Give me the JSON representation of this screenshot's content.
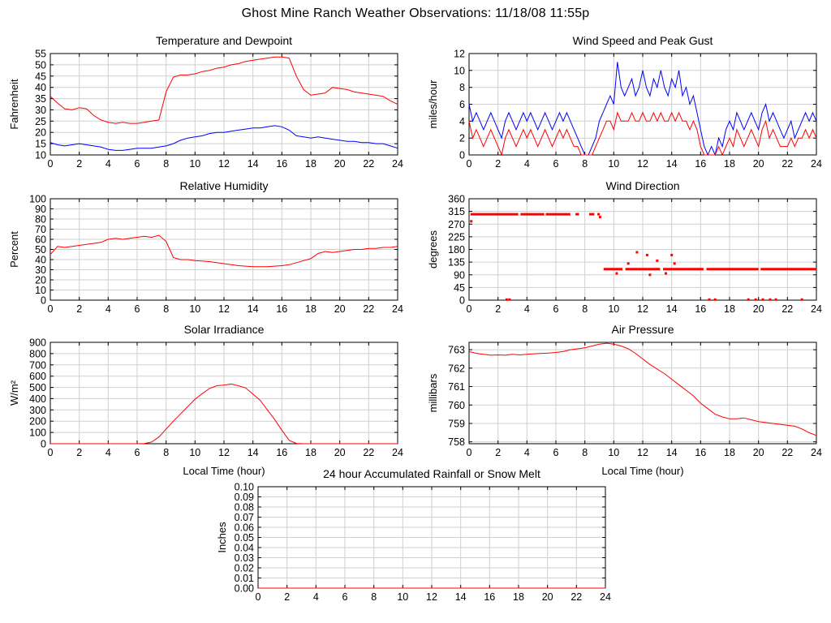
{
  "page_title": "Ghost Mine Ranch Weather Observations: 11/18/08 11:55p",
  "colors": {
    "red": "#ff0000",
    "blue": "#0000ff",
    "grid": "#cfcfcf",
    "axis": "#000000"
  },
  "chart_data": [
    {
      "id": "temperature-dewpoint",
      "type": "line",
      "title": "Temperature and Dewpoint",
      "ylabel": "Fahrenheit",
      "xlabel": "",
      "xlim": [
        0,
        24
      ],
      "ylim": [
        10,
        55
      ],
      "xticks": [
        0,
        2,
        4,
        6,
        8,
        10,
        12,
        14,
        16,
        18,
        20,
        22,
        24
      ],
      "yticks": [
        10,
        15,
        20,
        25,
        30,
        35,
        40,
        45,
        50,
        55
      ],
      "ytick_labels": [
        "10",
        "15",
        "20",
        "25",
        "30",
        "35",
        "40",
        "45",
        "50",
        "55"
      ],
      "grid": true,
      "series": [
        {
          "name": "temperature",
          "color": "#ff0000",
          "x_start": 0,
          "x_step": 0.5,
          "values": [
            36,
            33,
            30.5,
            30,
            31,
            30.5,
            27.5,
            25.5,
            24.5,
            24,
            24.5,
            24,
            24,
            24.5,
            25,
            25.5,
            38,
            44.5,
            45.5,
            45.5,
            46,
            47,
            47.5,
            48.5,
            49,
            50,
            50.5,
            51.5,
            52,
            52.5,
            53,
            53.5,
            53.5,
            53,
            45,
            39,
            36.5,
            37,
            37.5,
            40,
            39.5,
            39,
            38,
            37.5,
            37,
            36.5,
            36,
            34,
            32.5
          ]
        },
        {
          "name": "dewpoint",
          "color": "#0000ff",
          "x_start": 0,
          "x_step": 0.5,
          "values": [
            15.5,
            14.5,
            14,
            14.5,
            15,
            14.5,
            14,
            13.5,
            12.5,
            12,
            12,
            12.5,
            13,
            13,
            13,
            13.5,
            14,
            15,
            16.5,
            17.5,
            18,
            18.5,
            19.5,
            20,
            20,
            20.5,
            21,
            21.5,
            22,
            22,
            22.5,
            23,
            22.5,
            21,
            18.5,
            18,
            17.5,
            18,
            17.5,
            17,
            16.5,
            16,
            16,
            15.5,
            15.5,
            15,
            15,
            14,
            13
          ]
        }
      ]
    },
    {
      "id": "wind-speed-gust",
      "type": "line",
      "title": "Wind Speed and Peak Gust",
      "ylabel": "miles/hour",
      "xlabel": "",
      "xlim": [
        0,
        24
      ],
      "ylim": [
        0,
        12
      ],
      "xticks": [
        0,
        2,
        4,
        6,
        8,
        10,
        12,
        14,
        16,
        18,
        20,
        22,
        24
      ],
      "yticks": [
        0,
        2,
        4,
        6,
        8,
        10,
        12
      ],
      "ytick_labels": [
        "0",
        "2",
        "4",
        "6",
        "8",
        "10",
        "12"
      ],
      "grid": true,
      "series": [
        {
          "name": "peak-gust",
          "color": "#0000ff",
          "x_start": 0,
          "x_step": 0.25,
          "values": [
            6,
            4,
            5,
            4,
            3,
            4,
            5,
            4,
            3,
            2,
            4,
            5,
            4,
            3,
            4,
            5,
            4,
            5,
            4,
            3,
            4,
            5,
            4,
            3,
            4,
            5,
            4,
            5,
            4,
            3,
            2,
            1,
            0,
            0,
            1,
            2,
            4,
            5,
            6,
            7,
            6,
            11,
            8,
            7,
            8,
            9,
            7,
            8,
            10,
            8,
            7,
            9,
            8,
            10,
            8,
            7,
            9,
            8,
            10,
            7,
            8,
            6,
            7,
            5,
            3,
            1,
            0,
            1,
            0,
            2,
            1,
            3,
            4,
            3,
            5,
            4,
            3,
            4,
            5,
            4,
            3,
            5,
            6,
            4,
            5,
            4,
            3,
            2,
            3,
            4,
            2,
            3,
            4,
            5,
            4,
            5,
            4
          ]
        },
        {
          "name": "wind-speed",
          "color": "#ff0000",
          "x_start": 0,
          "x_step": 0.25,
          "values": [
            4,
            2,
            3,
            2,
            1,
            2,
            3,
            2,
            1,
            0,
            2,
            3,
            2,
            1,
            2,
            3,
            2,
            3,
            2,
            1,
            2,
            3,
            2,
            1,
            2,
            3,
            2,
            3,
            2,
            1,
            1,
            0,
            0,
            0,
            0,
            1,
            2,
            3,
            4,
            4,
            3,
            5,
            4,
            4,
            4,
            5,
            4,
            4,
            5,
            4,
            4,
            5,
            4,
            5,
            4,
            4,
            5,
            4,
            5,
            4,
            4,
            3,
            4,
            3,
            1,
            0,
            0,
            0,
            0,
            1,
            0,
            1,
            2,
            1,
            3,
            2,
            1,
            2,
            3,
            2,
            1,
            3,
            4,
            2,
            3,
            2,
            1,
            1,
            1,
            2,
            1,
            2,
            2,
            3,
            2,
            3,
            2
          ]
        }
      ]
    },
    {
      "id": "relative-humidity",
      "type": "line",
      "title": "Relative Humidity",
      "ylabel": "Percent",
      "xlabel": "",
      "xlim": [
        0,
        24
      ],
      "ylim": [
        0,
        100
      ],
      "xticks": [
        0,
        2,
        4,
        6,
        8,
        10,
        12,
        14,
        16,
        18,
        20,
        22,
        24
      ],
      "yticks": [
        0,
        10,
        20,
        30,
        40,
        50,
        60,
        70,
        80,
        90,
        100
      ],
      "ytick_labels": [
        "0",
        "10",
        "20",
        "30",
        "40",
        "50",
        "60",
        "70",
        "80",
        "90",
        "100"
      ],
      "grid": true,
      "series": [
        {
          "name": "humidity",
          "color": "#ff0000",
          "x_start": 0,
          "x_step": 0.5,
          "values": [
            45,
            53,
            52,
            53,
            54,
            55,
            56,
            57,
            60,
            61,
            60,
            61,
            62,
            63,
            62,
            64,
            58,
            42,
            40,
            40,
            39,
            38.5,
            38,
            37,
            36,
            35,
            34,
            33.5,
            33,
            33,
            33,
            33.5,
            34,
            35,
            37,
            39,
            41,
            46,
            48,
            47,
            48,
            49,
            50,
            50,
            51,
            51,
            52,
            52,
            53
          ]
        }
      ]
    },
    {
      "id": "wind-direction",
      "type": "scatter",
      "title": "Wind Direction",
      "ylabel": "degrees",
      "xlabel": "",
      "xlim": [
        0,
        24
      ],
      "ylim": [
        0,
        360
      ],
      "xticks": [
        0,
        2,
        4,
        6,
        8,
        10,
        12,
        14,
        16,
        18,
        20,
        22,
        24
      ],
      "yticks": [
        0,
        45,
        90,
        135,
        180,
        225,
        270,
        315,
        360
      ],
      "ytick_labels": [
        "0",
        "45",
        "90",
        "135",
        "180",
        "225",
        "270",
        "315",
        "360"
      ],
      "grid": true,
      "series": [
        {
          "name": "direction",
          "color": "#ff0000",
          "segments": [
            {
              "y": 305,
              "x1": 0.1,
              "x2": 3.4
            },
            {
              "y": 305,
              "x1": 3.55,
              "x2": 5.2
            },
            {
              "y": 305,
              "x1": 5.3,
              "x2": 7.0
            },
            {
              "y": 305,
              "x1": 7.35,
              "x2": 7.6
            },
            {
              "y": 305,
              "x1": 8.3,
              "x2": 8.65
            },
            {
              "y": 110,
              "x1": 9.3,
              "x2": 10.6
            },
            {
              "y": 110,
              "x1": 10.8,
              "x2": 13.2
            },
            {
              "y": 110,
              "x1": 13.4,
              "x2": 16.2
            },
            {
              "y": 110,
              "x1": 16.4,
              "x2": 20.0
            },
            {
              "y": 110,
              "x1": 20.15,
              "x2": 24.0
            }
          ],
          "dots": [
            [
              0.15,
              280
            ],
            [
              8.95,
              305
            ],
            [
              9.05,
              295
            ],
            [
              10.2,
              95
            ],
            [
              11.0,
              130
            ],
            [
              11.6,
              170
            ],
            [
              12.3,
              160
            ],
            [
              12.5,
              90
            ],
            [
              13.0,
              140
            ],
            [
              13.6,
              95
            ],
            [
              14.0,
              160
            ],
            [
              14.2,
              130
            ],
            [
              2.6,
              2
            ],
            [
              2.8,
              2
            ],
            [
              16.6,
              2
            ],
            [
              17.0,
              2
            ],
            [
              19.3,
              2
            ],
            [
              19.8,
              2
            ],
            [
              20.3,
              2
            ],
            [
              20.8,
              2
            ],
            [
              21.2,
              2
            ],
            [
              23.0,
              2
            ]
          ]
        }
      ]
    },
    {
      "id": "solar-irradiance",
      "type": "line",
      "title": "Solar Irradiance",
      "ylabel": "W/m²",
      "xlabel": "Local Time (hour)",
      "xlim": [
        0,
        24
      ],
      "ylim": [
        0,
        900
      ],
      "xticks": [
        0,
        2,
        4,
        6,
        8,
        10,
        12,
        14,
        16,
        18,
        20,
        22,
        24
      ],
      "yticks": [
        0,
        100,
        200,
        300,
        400,
        500,
        600,
        700,
        800,
        900
      ],
      "ytick_labels": [
        "0",
        "100",
        "200",
        "300",
        "400",
        "500",
        "600",
        "700",
        "800",
        "900"
      ],
      "grid": true,
      "series": [
        {
          "name": "irradiance",
          "color": "#ff0000",
          "x_start": 0,
          "x_step": 0.5,
          "values": [
            0,
            0,
            0,
            0,
            0,
            0,
            0,
            0,
            0,
            0,
            0,
            0,
            0,
            2,
            15,
            60,
            130,
            200,
            265,
            330,
            395,
            445,
            490,
            515,
            520,
            530,
            515,
            495,
            440,
            385,
            300,
            215,
            120,
            30,
            3,
            0,
            0,
            0,
            0,
            0,
            0,
            0,
            0,
            0,
            0,
            0,
            0,
            0,
            0
          ]
        }
      ]
    },
    {
      "id": "air-pressure",
      "type": "line",
      "title": "Air Pressure",
      "ylabel": "millibars",
      "xlabel": "Local Time (hour)",
      "xlim": [
        0,
        24
      ],
      "ylim": [
        757.9,
        763.4
      ],
      "xticks": [
        0,
        2,
        4,
        6,
        8,
        10,
        12,
        14,
        16,
        18,
        20,
        22,
        24
      ],
      "yticks": [
        758,
        759,
        760,
        761,
        762,
        763
      ],
      "ytick_labels": [
        "758",
        "759",
        "760",
        "761",
        "762",
        "763"
      ],
      "grid": true,
      "series": [
        {
          "name": "pressure",
          "color": "#ff0000",
          "x_start": 0,
          "x_step": 0.5,
          "values": [
            762.9,
            762.8,
            762.75,
            762.7,
            762.72,
            762.7,
            762.75,
            762.72,
            762.75,
            762.78,
            762.8,
            762.82,
            762.85,
            762.9,
            763.0,
            763.05,
            763.1,
            763.2,
            763.3,
            763.35,
            763.3,
            763.2,
            763.05,
            762.8,
            762.5,
            762.2,
            761.95,
            761.7,
            761.4,
            761.1,
            760.8,
            760.5,
            760.1,
            759.8,
            759.5,
            759.35,
            759.25,
            759.25,
            759.3,
            759.2,
            759.1,
            759.05,
            759.0,
            758.95,
            758.9,
            758.85,
            758.7,
            758.5,
            758.35
          ]
        }
      ]
    },
    {
      "id": "accumulated-rainfall",
      "type": "line",
      "title": "24 hour Accumulated Rainfall or Snow Melt",
      "ylabel": "Inches",
      "xlabel": "",
      "xlim": [
        0,
        24
      ],
      "ylim": [
        0,
        0.1
      ],
      "xticks": [
        0,
        2,
        4,
        6,
        8,
        10,
        12,
        14,
        16,
        18,
        20,
        22,
        24
      ],
      "yticks": [
        0,
        0.01,
        0.02,
        0.03,
        0.04,
        0.05,
        0.06,
        0.07,
        0.08,
        0.09,
        0.1
      ],
      "ytick_labels": [
        "0.00",
        "0.01",
        "0.02",
        "0.03",
        "0.04",
        "0.05",
        "0.06",
        "0.07",
        "0.08",
        "0.09",
        "0.10"
      ],
      "grid": true,
      "series": [
        {
          "name": "rainfall",
          "color": "#ff0000",
          "x_start": 0,
          "x_step": 24,
          "values": [
            0,
            0
          ]
        }
      ]
    }
  ]
}
